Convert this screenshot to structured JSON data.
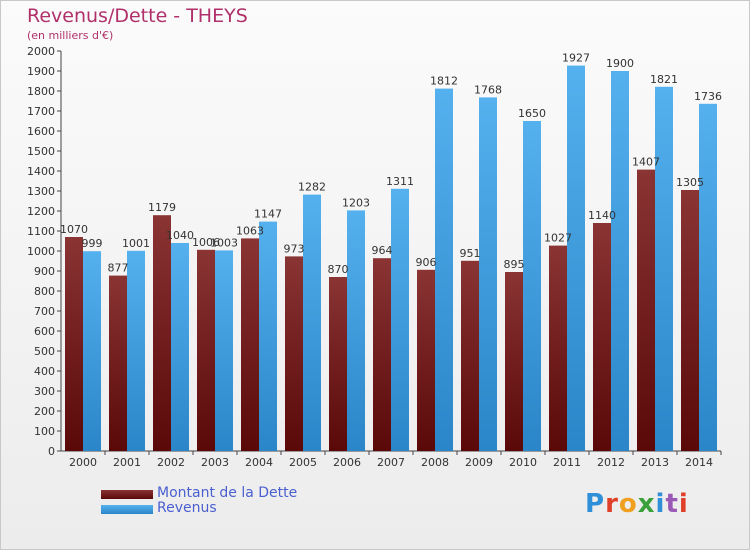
{
  "header": {
    "title": "Revenus/Dette - THEYS",
    "subtitle": "(en milliers d'€)"
  },
  "logo": {
    "text": "Proxiti",
    "letter_colors": [
      "#2f8fd8",
      "#e0402a",
      "#f0a020",
      "#3aa03a",
      "#2f8fd8",
      "#9b59b6",
      "#e0402a"
    ]
  },
  "chart_data": {
    "type": "bar",
    "title": "Revenus/Dette - THEYS",
    "subtitle": "(en milliers d'€)",
    "categories": [
      "2000",
      "2001",
      "2002",
      "2003",
      "2004",
      "2005",
      "2006",
      "2007",
      "2008",
      "2009",
      "2010",
      "2011",
      "2012",
      "2013",
      "2014"
    ],
    "yticks": [
      "0",
      "100",
      "200",
      "300",
      "400",
      "500",
      "600",
      "700",
      "800",
      "900",
      "1000",
      "1100",
      "1200",
      "1300",
      "1400",
      "1500",
      "1600",
      "1700",
      "1800",
      "1900",
      "2000"
    ],
    "ylim": [
      0,
      2000
    ],
    "grid": false,
    "legend_position": "bottom-left",
    "series": [
      {
        "name": "Montant de la Dette",
        "color": "#7a1a1a",
        "values": [
          1070,
          877,
          1179,
          1006,
          1063,
          973,
          870,
          964,
          906,
          951,
          895,
          1027,
          1140,
          1407,
          1305
        ],
        "labels": [
          "1070",
          "877",
          "1179",
          "1006",
          "1063",
          "973",
          "870",
          "964",
          "906",
          "951",
          "895",
          "1027",
          "1140",
          "1407",
          "1305"
        ]
      },
      {
        "name": "Revenus",
        "color": "#3a9ee0",
        "values": [
          999,
          1001,
          1040,
          1003,
          1147,
          1282,
          1203,
          1311,
          1812,
          1768,
          1650,
          1927,
          1900,
          1821,
          1736
        ],
        "labels": [
          "999",
          "1001",
          "1040",
          "1003",
          "1147",
          "1282",
          "1203",
          "1311",
          "1812",
          "1768",
          "1650",
          "1927",
          "1900",
          "1821",
          "1736"
        ]
      }
    ]
  }
}
